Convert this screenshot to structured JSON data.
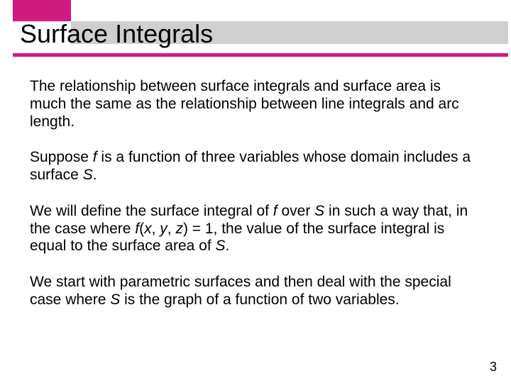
{
  "header": {
    "title": "Surface Integrals",
    "accent_color": "#d11a80",
    "grey_bar_color": "#cfcfcf"
  },
  "paragraphs": {
    "p1": "The relationship between surface integrals and surface area is much the same as the relationship between line integrals and arc length.",
    "p2_a": "Suppose ",
    "p2_f": "f",
    "p2_b": " is a function of three variables whose domain includes a surface ",
    "p2_S": "S",
    "p2_c": ".",
    "p3_a": "We will define the surface integral of ",
    "p3_f1": "f",
    "p3_b": " over ",
    "p3_S1": "S",
    "p3_c": " in such a way that, in the case where ",
    "p3_f2": "f",
    "p3_d": "(",
    "p3_x": "x",
    "p3_e": ", ",
    "p3_y": "y",
    "p3_g": ", ",
    "p3_z": "z",
    "p3_h": ") = 1, the value of the surface integral is equal to the surface area of ",
    "p3_S2": "S",
    "p3_i": ".",
    "p4_a": "We start with parametric surfaces and then deal with the special case where ",
    "p4_S": "S",
    "p4_b": " is the graph of a function of two variables."
  },
  "page_number": "3"
}
